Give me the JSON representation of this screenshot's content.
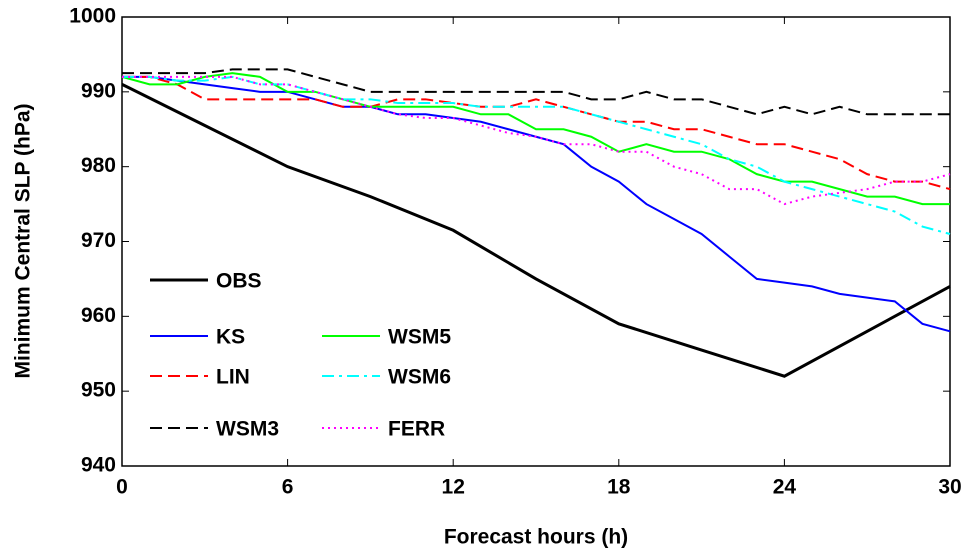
{
  "chart_data": {
    "type": "line",
    "xlabel": "Forecast hours (h)",
    "ylabel": "Minimum Central SLP (hPa)",
    "x": [
      0,
      1,
      2,
      3,
      4,
      5,
      6,
      7,
      8,
      9,
      10,
      11,
      12,
      13,
      14,
      15,
      16,
      17,
      18,
      19,
      20,
      21,
      22,
      23,
      24,
      25,
      26,
      27,
      28,
      29,
      30
    ],
    "xlim": [
      0,
      30
    ],
    "xticks": [
      0,
      6,
      12,
      18,
      24,
      30
    ],
    "ylim": [
      940,
      1000
    ],
    "yticks": [
      940,
      950,
      960,
      970,
      980,
      990,
      1000
    ],
    "series": [
      {
        "name": "OBS",
        "color": "#000000",
        "style": "solid",
        "x": [
          0,
          3,
          6,
          9,
          12,
          15,
          18,
          21,
          24,
          27,
          30
        ],
        "values": [
          991,
          985.5,
          980,
          976,
          971.5,
          965,
          959,
          955.5,
          952,
          958,
          964
        ]
      },
      {
        "name": "KS",
        "color": "#0000ff",
        "style": "solid",
        "values": [
          992,
          992,
          991.5,
          991,
          990.5,
          990,
          990,
          989,
          988,
          988,
          987,
          987,
          986.5,
          986,
          985,
          984,
          983,
          980,
          978,
          975,
          973,
          971,
          968,
          965,
          964.5,
          964,
          963,
          962.5,
          962,
          959,
          958
        ]
      },
      {
        "name": "LIN",
        "color": "#ff0000",
        "style": "dashed",
        "values": [
          992,
          992,
          991,
          989,
          989,
          989,
          989,
          989,
          988,
          988,
          989,
          989,
          988.5,
          988,
          988,
          989,
          988,
          987,
          986,
          986,
          985,
          985,
          984,
          983,
          983,
          982,
          981,
          979,
          978,
          978,
          977
        ]
      },
      {
        "name": "WSM3",
        "color": "#000000",
        "style": "dashed",
        "values": [
          992.5,
          992.5,
          992.5,
          992.5,
          993,
          993,
          993,
          992,
          991,
          990,
          990,
          990,
          990,
          990,
          990,
          990,
          990,
          989,
          989,
          990,
          989,
          989,
          988,
          987,
          988,
          987,
          988,
          987,
          987,
          987,
          987
        ]
      },
      {
        "name": "WSM5",
        "color": "#00ff00",
        "style": "solid",
        "values": [
          992,
          991,
          991,
          992,
          992.5,
          992,
          990,
          990,
          989,
          988,
          988,
          988,
          988,
          987,
          987,
          985,
          985,
          984,
          982,
          983,
          982,
          982,
          981,
          979,
          978,
          978,
          977,
          976,
          976,
          975,
          975
        ]
      },
      {
        "name": "WSM6",
        "color": "#00ffff",
        "style": "dashdot",
        "values": [
          992,
          992,
          991.5,
          991.5,
          992,
          991,
          991,
          990,
          989,
          989,
          988.5,
          988.5,
          988.5,
          988,
          988,
          988,
          988,
          987,
          986,
          985,
          984,
          983,
          981,
          980,
          978,
          977,
          976,
          975,
          974,
          972,
          971
        ]
      },
      {
        "name": "FERR",
        "color": "#ff00ff",
        "style": "dotted",
        "values": [
          992,
          992,
          992,
          992,
          992,
          991,
          991,
          990,
          989,
          988,
          987,
          986.5,
          986.5,
          985.5,
          984.5,
          984,
          983,
          983,
          982,
          982,
          980,
          979,
          977,
          977,
          975,
          976,
          976.5,
          977,
          978,
          978,
          979
        ]
      }
    ]
  }
}
